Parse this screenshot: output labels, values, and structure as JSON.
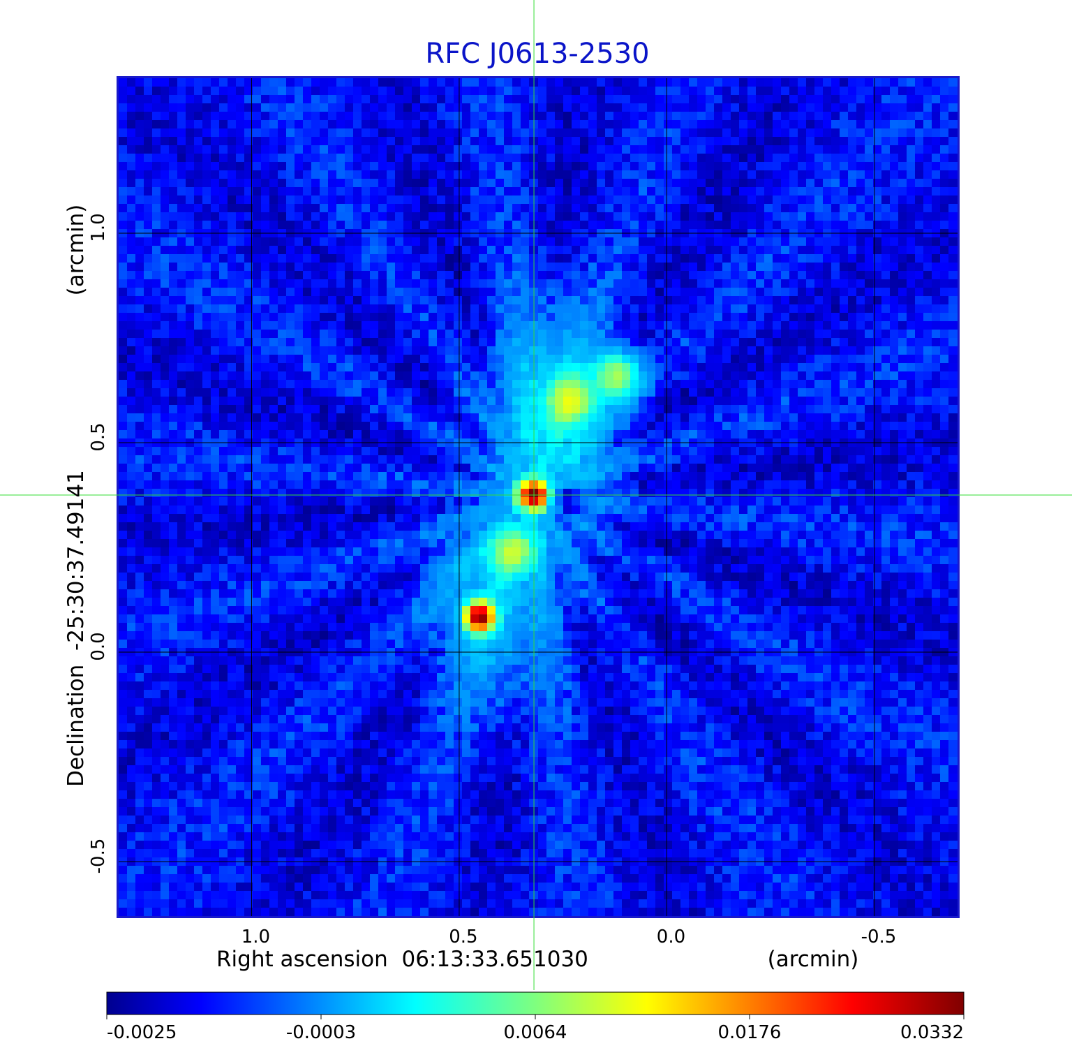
{
  "chart_data": {
    "type": "heatmap",
    "title": "RFC J0613-2530",
    "xlabel": "Right ascension  06:13:33.651030",
    "xunit": "(arcmin)",
    "ylabel": "Declination  -25:30:37.49141",
    "yunit": "(arcmin)",
    "xlim": [
      1.32,
      -0.7
    ],
    "ylim": [
      -0.63,
      1.37
    ],
    "xticks": [
      1.0,
      0.5,
      0.0,
      -0.5
    ],
    "xtick_labels": [
      "1.0",
      "0.5",
      "0.0",
      "-0.5"
    ],
    "yticks": [
      -0.5,
      0.0,
      0.5,
      1.0
    ],
    "ytick_labels": [
      "-0.5",
      "0.0",
      "0.5",
      "1.0"
    ],
    "grid": true,
    "crosshair": {
      "x": 0.32,
      "y": 0.375
    },
    "colormap": "jet",
    "colorbar": {
      "ticks": [
        -0.0025,
        -0.0003,
        0.0064,
        0.0176,
        0.0332
      ],
      "tick_labels": [
        "-0.0025",
        "-0.0003",
        "0.0064",
        "0.0176",
        "0.0332"
      ]
    },
    "sources": [
      {
        "x": 0.32,
        "y": 0.375,
        "peak": 0.0332
      },
      {
        "x": 0.45,
        "y": 0.085,
        "peak": 0.0332
      },
      {
        "x": 0.37,
        "y": 0.24,
        "peak": 0.009
      },
      {
        "x": 0.23,
        "y": 0.6,
        "peak": 0.009
      },
      {
        "x": 0.12,
        "y": 0.66,
        "peak": 0.0085
      },
      {
        "x": 0.25,
        "y": 0.36,
        "peak": -0.0025
      }
    ],
    "colors": {
      "title": "#0a14c8",
      "frame": "#1a1acb",
      "grid": "#000000",
      "crosshair": "#33dd33"
    }
  }
}
